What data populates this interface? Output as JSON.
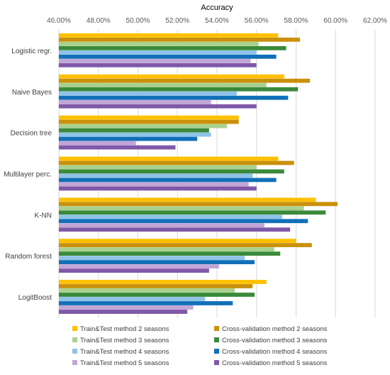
{
  "chart_data": {
    "type": "bar",
    "orientation": "horizontal",
    "title": "Accuracy",
    "xlabel": "",
    "ylabel": "",
    "xlim": [
      46,
      62
    ],
    "x_ticks": [
      "46.00%",
      "48.00%",
      "50.00%",
      "52.00%",
      "54.00%",
      "56.00%",
      "58.00%",
      "60.00%",
      "62.00%"
    ],
    "x_tick_values": [
      46,
      48,
      50,
      52,
      54,
      56,
      58,
      60,
      62
    ],
    "x_axis_position": "top",
    "grid": true,
    "legend_position": "bottom",
    "categories": [
      "Logistic regr.",
      "Naive Bayes",
      "Decision tree",
      "Multilayer perc.",
      "K-NN",
      "Random forest",
      "LogitBoost"
    ],
    "series": [
      {
        "name": "Train&Test method 2 seasons",
        "color": "#ffc000",
        "values": [
          57.1,
          57.4,
          55.1,
          57.1,
          59.0,
          58.0,
          56.5
        ]
      },
      {
        "name": "Cross-validation method 2 seasons",
        "color": "#c9910a",
        "values": [
          58.2,
          58.7,
          55.1,
          57.9,
          60.1,
          58.8,
          55.8
        ]
      },
      {
        "name": "Train&Test method 3 seasons",
        "color": "#a9d18e",
        "values": [
          56.1,
          56.5,
          54.5,
          56.0,
          58.4,
          56.9,
          54.9
        ]
      },
      {
        "name": "Cross-validation method 3 seasons",
        "color": "#3a8a3a",
        "values": [
          57.5,
          58.1,
          53.6,
          57.4,
          59.5,
          57.2,
          55.9
        ]
      },
      {
        "name": "Train&Test method 4 seasons",
        "color": "#8fc3e8",
        "values": [
          56.0,
          55.0,
          53.7,
          55.8,
          57.3,
          55.4,
          53.4
        ]
      },
      {
        "name": "Cross-validation method 4 seasons",
        "color": "#1170b8",
        "values": [
          57.0,
          57.6,
          53.0,
          57.0,
          58.6,
          55.9,
          54.8
        ]
      },
      {
        "name": "Train&Test method 5 seasons",
        "color": "#c2a6d6",
        "values": [
          55.7,
          53.7,
          49.9,
          55.6,
          56.4,
          54.1,
          52.8
        ]
      },
      {
        "name": "Cross-validation method 5 seasons",
        "color": "#8058a8",
        "values": [
          56.0,
          56.0,
          51.9,
          56.0,
          57.7,
          53.6,
          52.5
        ]
      }
    ]
  }
}
